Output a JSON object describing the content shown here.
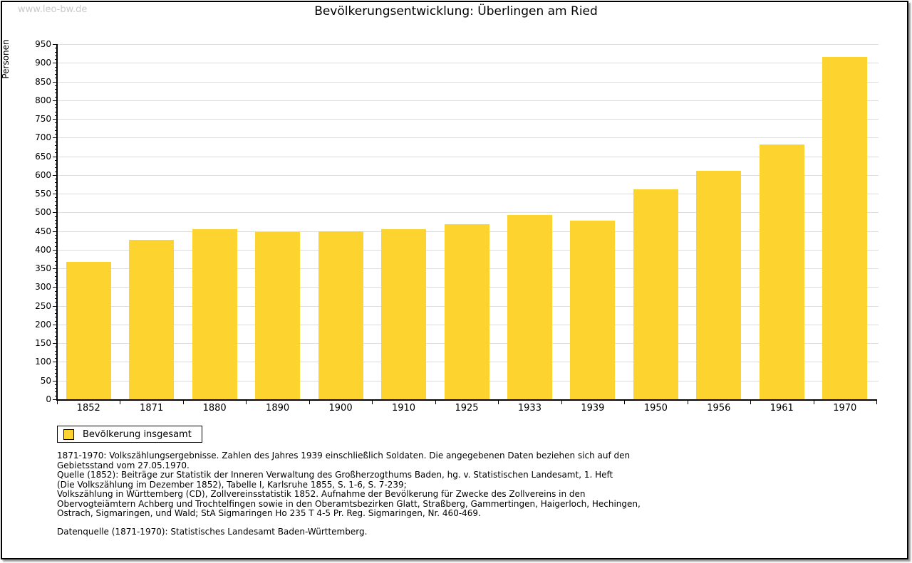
{
  "watermark": "www.leo-bw.de",
  "chart_data": {
    "type": "bar",
    "title": "Bevölkerungsentwicklung: Überlingen am Ried",
    "xlabel": "",
    "ylabel": "Personen",
    "categories": [
      "1852",
      "1871",
      "1880",
      "1890",
      "1900",
      "1910",
      "1925",
      "1933",
      "1939",
      "1950",
      "1956",
      "1961",
      "1970"
    ],
    "series": [
      {
        "name": "Bevölkerung insgesamt",
        "values": [
          367,
          427,
          455,
          448,
          450,
          455,
          469,
          494,
          478,
          561,
          612,
          681,
          915
        ]
      }
    ],
    "ylim": [
      0,
      950
    ],
    "y_tick_step": 50,
    "y_minor_tick_step": 10,
    "grid": true,
    "legend_position": "bottom-left",
    "bar_color": "#FCD32F",
    "grid_color": "#dcdcdc",
    "axis_color": "#000000"
  },
  "legend": {
    "label": "Bevölkerung insgesamt"
  },
  "notes": {
    "lines": [
      "1871-1970: Volkszählungsergebnisse. Zahlen des Jahres 1939 einschließlich Soldaten. Die angegebenen Daten beziehen sich auf den",
      "Gebietsstand vom 27.05.1970.",
      "Quelle (1852): Beiträge zur Statistik der Inneren Verwaltung des Großherzogthums Baden, hg. v. Statistischen Landesamt, 1. Heft",
      "(Die Volkszählung im Dezember 1852), Tabelle I, Karlsruhe 1855, S. 1-6, S. 7-239;",
      "Volkszählung in Württemberg (CD), Zollvereinsstatistik 1852. Aufnahme der Bevölkerung für Zwecke des Zollvereins in den",
      "Obervogteiämtern Achberg und Trochtelfingen sowie in den Oberamtsbezirken Glatt, Straßberg, Gammertingen, Haigerloch, Hechingen,",
      "Ostrach, Sigmaringen, und Wald; StA Sigmaringen Ho 235 T 4-5 Pr. Reg. Sigmaringen, Nr. 460-469."
    ],
    "datasource": "Datenquelle (1871-1970): Statistisches Landesamt Baden-Württemberg."
  }
}
